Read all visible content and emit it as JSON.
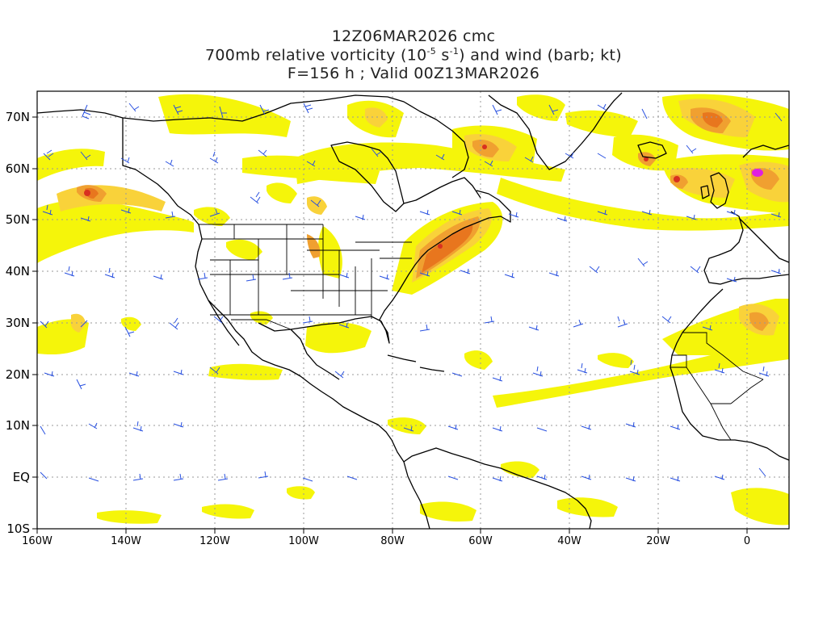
{
  "header": {
    "line1": "12Z06MAR2026 cmc",
    "line2_prefix": "700mb relative vorticity (10",
    "line2_exp1": "-5",
    "line2_mid": " s",
    "line2_exp2": "-1",
    "line2_suffix": ") and wind (barb; kt)",
    "line3": "F=156 h ; Valid 00Z13MAR2026"
  },
  "axes": {
    "lat_labels": [
      "70N",
      "60N",
      "50N",
      "40N",
      "30N",
      "20N",
      "10N",
      "EQ",
      "10S"
    ],
    "lon_labels": [
      "160W",
      "140W",
      "120W",
      "100W",
      "80W",
      "60W",
      "40W",
      "20W",
      "0"
    ]
  },
  "colors": {
    "yellow": "#f5f50a",
    "light_orange": "#f9d23a",
    "orange": "#f0a030",
    "dark_orange": "#e8761e",
    "red": "#d83020",
    "magenta": "#e020e0",
    "barb": "#2850e0",
    "coast": "#000000",
    "grid": "#999999"
  }
}
